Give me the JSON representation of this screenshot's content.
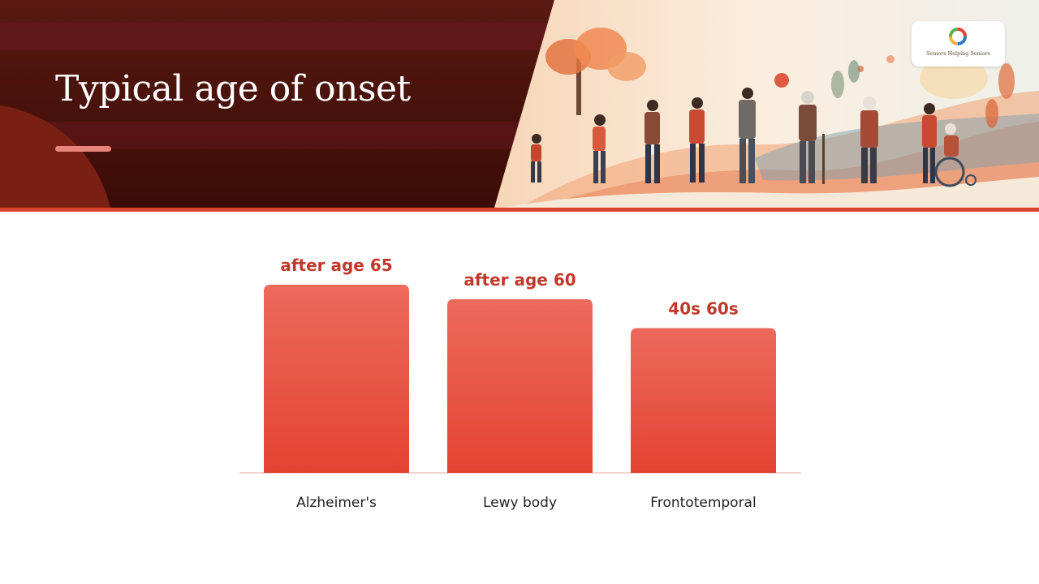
{
  "slide": {
    "title": "Typical age of onset",
    "colors": {
      "header_dark": "#4a130c",
      "accent": "#d9412d",
      "bar_top": "#ec6a5c",
      "bar_bottom": "#e44332",
      "label": "#c0392b"
    }
  },
  "logo": {
    "text": "Seniors Helping Seniors",
    "icon": "ring-logo-icon"
  },
  "chart_data": {
    "type": "bar",
    "categories": [
      "Alzheimer's",
      "Lewy body",
      "Frontotemporal"
    ],
    "values": [
      65,
      60,
      50
    ],
    "data_labels": [
      "after age 65",
      "after age 60",
      "40s 60s"
    ],
    "title": "",
    "xlabel": "",
    "ylabel": "",
    "ylim": [
      0,
      65
    ],
    "grid": false,
    "legend": "none"
  }
}
